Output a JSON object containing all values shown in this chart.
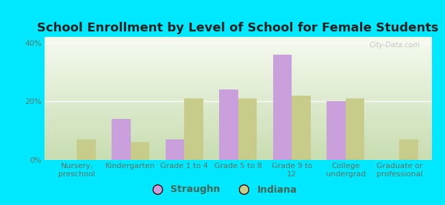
{
  "title": "School Enrollment by Level of School for Female Students",
  "categories": [
    "Nursery,\npreschool",
    "Kindergarten",
    "Grade 1 to 4",
    "Grade 5 to 8",
    "Grade 9 to\n12",
    "College\nundergrad",
    "Graduate or\nprofessional"
  ],
  "straughn": [
    0,
    14,
    7,
    24,
    36,
    20,
    0
  ],
  "indiana": [
    7,
    6,
    21,
    21,
    22,
    21,
    7
  ],
  "straughn_color": "#c9a0dc",
  "indiana_color": "#c8cc8a",
  "background_color": "#00e8ff",
  "plot_bg_top": "#c8ddb0",
  "plot_bg_bottom": "#f5faf0",
  "ylabel_ticks": [
    "0%",
    "20%",
    "40%"
  ],
  "yticks": [
    0,
    20,
    40
  ],
  "ylim": [
    0,
    42
  ],
  "bar_width": 0.35,
  "title_fontsize": 13,
  "tick_fontsize": 8,
  "legend_fontsize": 10,
  "watermark": "City-Data.com"
}
